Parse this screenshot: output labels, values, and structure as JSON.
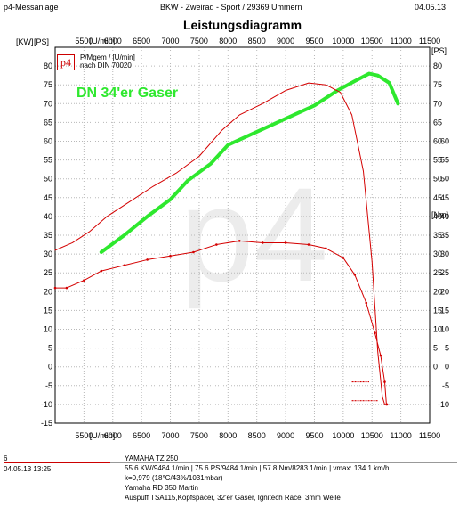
{
  "header": {
    "app": "p4-Messanlage",
    "shop": "BKW - Zweirad - Sport   /   29369 Ummern",
    "date": "04.05.13"
  },
  "chart_data": {
    "type": "line",
    "title": "Leistungsdiagramm",
    "xlabel": "[U/min]",
    "ylabel_left": "[KW]",
    "ylabel_left2": "[PS]",
    "ylabel_right": "[PS]",
    "ylabel_right2": "[Nm]",
    "xlim": [
      5000,
      11500
    ],
    "xticks": [
      5500,
      6000,
      6500,
      7000,
      7500,
      8000,
      8500,
      9000,
      9500,
      10000,
      10500,
      11000,
      11500
    ],
    "ylim": [
      -15,
      85
    ],
    "yticks": [
      -15,
      -10,
      -5,
      0,
      5,
      10,
      15,
      20,
      25,
      30,
      35,
      40,
      45,
      50,
      55,
      60,
      65,
      70,
      75,
      80
    ],
    "right_ps_ticks": [
      0,
      5,
      10,
      15,
      20,
      25,
      30,
      35,
      40,
      45,
      50,
      55,
      60,
      65,
      70,
      75,
      80
    ],
    "right_nm_ticks": [
      -10,
      -5,
      0,
      5,
      10,
      15,
      20,
      25,
      30,
      35,
      40,
      45,
      50,
      55,
      60
    ],
    "legend": [
      "P/Mgem / [U/min]",
      "nach DIN 70020"
    ],
    "annotation": "DN 34'er Gaser",
    "watermark": "p4",
    "logo": "p4",
    "series": [
      {
        "name": "DN 34'er Gaser",
        "color": "#2ee82e",
        "x": [
          5800,
          6200,
          6600,
          7000,
          7300,
          7700,
          8000,
          8500,
          9000,
          9500,
          9900,
          10200,
          10450,
          10600,
          10800,
          10950
        ],
        "y": [
          30.5,
          35,
          40,
          44.5,
          49.5,
          54,
          59,
          62.5,
          66,
          69.5,
          73.5,
          76,
          78,
          77.5,
          75.5,
          70
        ]
      },
      {
        "color": "#d40000",
        "x": [
          5000,
          5300,
          5600,
          5900,
          6300,
          6700,
          7100,
          7500,
          7900,
          8200,
          8600,
          9000,
          9400,
          9700,
          9950,
          10150,
          10350,
          10500,
          10600,
          10680,
          10720
        ],
        "y": [
          31,
          33,
          36,
          40,
          44,
          48,
          51.5,
          56,
          63,
          67,
          70,
          73.5,
          75.5,
          75,
          73,
          67,
          52,
          28,
          4,
          -8,
          -10
        ]
      },
      {
        "color": "#d40000",
        "x": [
          5000,
          5200,
          5500,
          5800,
          6200,
          6600,
          7000,
          7400,
          7800,
          8200,
          8600,
          9000,
          9400,
          9700,
          10000,
          10200,
          10400,
          10550,
          10650,
          10720,
          10750,
          10760
        ],
        "y": [
          21,
          21,
          23,
          25.5,
          27,
          28.5,
          29.5,
          30.5,
          32.5,
          33.5,
          33,
          33,
          32.5,
          31.5,
          29,
          24.5,
          17,
          9,
          3,
          -4,
          -10,
          -10
        ]
      }
    ],
    "stubs": [
      {
        "x": [
          10150,
          10450
        ],
        "y": [
          -4,
          -4
        ]
      },
      {
        "x": [
          10150,
          10600
        ],
        "y": [
          -9,
          -9
        ]
      }
    ]
  },
  "footer": {
    "run": "6",
    "date_time": "04.05.13  13:25",
    "model": "YAMAHA TZ 250",
    "specs": "55.6 KW/9484 1/min  |  75.6 PS/9484 1/min  |  57.8 Nm/8283 1/min  |  vmax: 134.1 km/h",
    "correction": "k=0,979  (18°C/43%/1031mbar)",
    "owner": "Yamaha RD 350 Martin",
    "setup": "Auspuff TSA115,Kopfspacer, 32'er Gaser, Ignitech Race, 3mm Welle"
  }
}
